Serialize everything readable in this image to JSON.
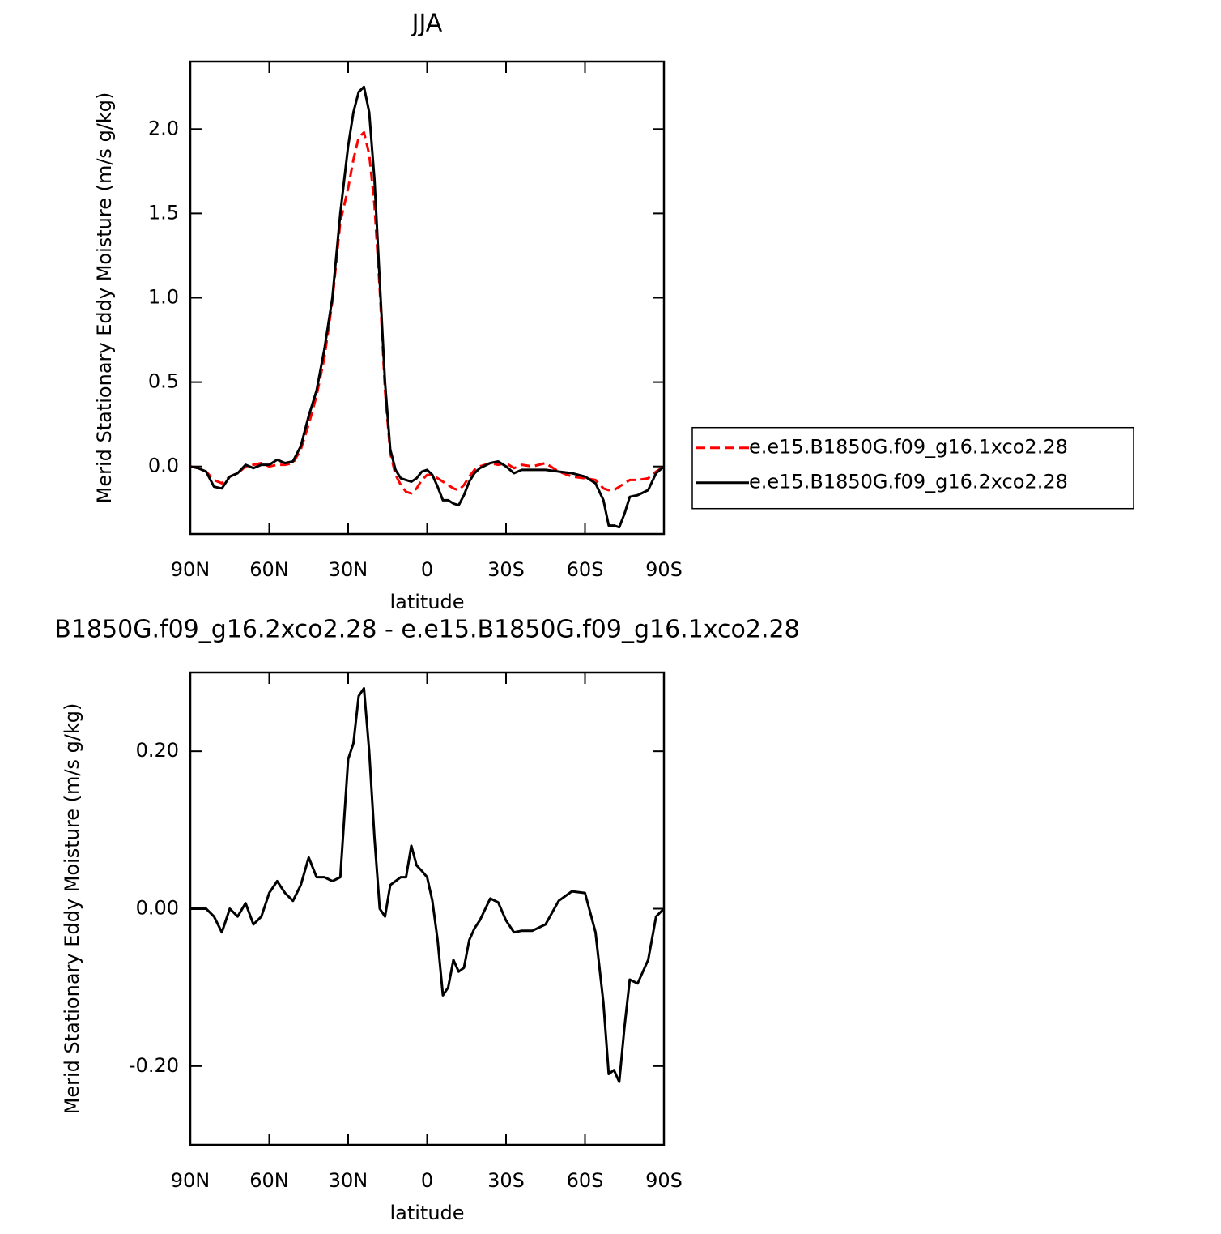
{
  "chart_data": [
    {
      "type": "line",
      "title": "JJA",
      "xlabel": "latitude",
      "ylabel": "Merid Stationary Eddy Moisture (m/s g/kg)",
      "x": [
        90,
        87,
        84,
        81,
        78,
        75,
        72,
        69,
        66,
        63,
        60,
        57,
        54,
        51,
        48,
        45,
        42,
        39,
        36,
        33,
        30,
        28,
        26,
        24,
        22,
        20,
        18,
        16,
        14,
        12,
        10,
        8,
        6,
        4,
        2,
        0,
        -2,
        -4,
        -6,
        -8,
        -10,
        -12,
        -14,
        -16,
        -18,
        -20,
        -24,
        -27,
        -30,
        -33,
        -36,
        -40,
        -45,
        -50,
        -55,
        -60,
        -64,
        -67,
        -69,
        -71,
        -73,
        -75,
        -77,
        -80,
        -84,
        -87,
        -90
      ],
      "series": [
        {
          "name": "e.e15.B1850G.f09_g16.1xco2.28",
          "color": "#ff0000",
          "linestyle": "dashed",
          "values": [
            0,
            -0.01,
            -0.03,
            -0.08,
            -0.1,
            -0.06,
            -0.04,
            0.0,
            0.01,
            0.02,
            0.0,
            0.01,
            0.01,
            0.02,
            0.1,
            0.25,
            0.42,
            0.65,
            0.98,
            1.45,
            1.65,
            1.82,
            1.95,
            1.98,
            1.85,
            1.55,
            1.05,
            0.45,
            0.08,
            -0.05,
            -0.11,
            -0.15,
            -0.16,
            -0.13,
            -0.08,
            -0.05,
            -0.05,
            -0.07,
            -0.09,
            -0.11,
            -0.13,
            -0.14,
            -0.11,
            -0.06,
            -0.02,
            0.0,
            0.02,
            0.01,
            0.02,
            -0.01,
            0.01,
            0.0,
            0.02,
            -0.03,
            -0.06,
            -0.07,
            -0.08,
            -0.13,
            -0.14,
            -0.14,
            -0.12,
            -0.1,
            -0.08,
            -0.08,
            -0.07,
            -0.03,
            0.0
          ]
        },
        {
          "name": "e.e15.B1850G.f09_g16.2xco2.28",
          "color": "#000000",
          "linestyle": "solid",
          "values": [
            0,
            -0.01,
            -0.03,
            -0.12,
            -0.13,
            -0.06,
            -0.04,
            0.01,
            -0.01,
            0.01,
            0.01,
            0.04,
            0.02,
            0.03,
            0.12,
            0.3,
            0.45,
            0.7,
            1.0,
            1.5,
            1.9,
            2.1,
            2.22,
            2.25,
            2.1,
            1.7,
            1.1,
            0.5,
            0.1,
            -0.02,
            -0.07,
            -0.08,
            -0.09,
            -0.07,
            -0.03,
            -0.02,
            -0.05,
            -0.12,
            -0.2,
            -0.2,
            -0.22,
            -0.23,
            -0.17,
            -0.09,
            -0.04,
            -0.01,
            0.02,
            0.03,
            0.0,
            -0.04,
            -0.02,
            -0.02,
            -0.02,
            -0.03,
            -0.04,
            -0.06,
            -0.1,
            -0.2,
            -0.35,
            -0.35,
            -0.36,
            -0.28,
            -0.18,
            -0.17,
            -0.14,
            -0.04,
            0.0
          ]
        }
      ],
      "xlim": [
        90,
        -90
      ],
      "xticks": [
        {
          "value": 90,
          "label": "90N"
        },
        {
          "value": 60,
          "label": "60N"
        },
        {
          "value": 30,
          "label": "30N"
        },
        0,
        {
          "value": -30,
          "label": "30S"
        },
        {
          "value": -60,
          "label": "60S"
        },
        {
          "value": -90,
          "label": "90S"
        }
      ],
      "ylim": [
        -0.4,
        2.4
      ],
      "yticks": [
        {
          "value": 0,
          "label": "0.0"
        },
        0.5,
        {
          "value": 1,
          "label": "1.0"
        },
        1.5,
        {
          "value": 2,
          "label": "2.0"
        }
      ],
      "legend": "right"
    },
    {
      "type": "line",
      "title": "B1850G.f09_g16.2xco2.28 - e.e15.B1850G.f09_g16.1xco2.28",
      "xlabel": "latitude",
      "ylabel": "Merid Stationary Eddy Moisture (m/s g/kg)",
      "x": [
        90,
        87,
        84,
        81,
        78,
        75,
        72,
        69,
        66,
        63,
        60,
        57,
        54,
        51,
        48,
        45,
        42,
        39,
        36,
        33,
        30,
        28,
        26,
        24,
        22,
        20,
        18,
        16,
        14,
        12,
        10,
        8,
        6,
        4,
        2,
        0,
        -2,
        -4,
        -6,
        -8,
        -10,
        -12,
        -14,
        -16,
        -18,
        -20,
        -24,
        -27,
        -30,
        -33,
        -36,
        -40,
        -45,
        -50,
        -55,
        -60,
        -64,
        -67,
        -69,
        -71,
        -73,
        -75,
        -77,
        -80,
        -84,
        -87,
        -90
      ],
      "series": [
        {
          "color": "#000000",
          "linestyle": "solid",
          "values": [
            0,
            0,
            0.0,
            -0.01,
            -0.03,
            0.0,
            -0.01,
            0.007,
            -0.02,
            -0.01,
            0.02,
            0.035,
            0.02,
            0.01,
            0.03,
            0.065,
            0.04,
            0.04,
            0.035,
            0.04,
            0.19,
            0.21,
            0.27,
            0.28,
            0.2,
            0.09,
            0.0,
            -0.01,
            0.03,
            0.035,
            0.04,
            0.04,
            0.08,
            0.055,
            0.048,
            0.04,
            0.01,
            -0.04,
            -0.11,
            -0.1,
            -0.065,
            -0.08,
            -0.075,
            -0.04,
            -0.025,
            -0.015,
            0.013,
            0.008,
            -0.015,
            -0.03,
            -0.028,
            -0.028,
            -0.02,
            0.01,
            0.022,
            0.02,
            -0.03,
            -0.12,
            -0.21,
            -0.205,
            -0.22,
            -0.15,
            -0.09,
            -0.095,
            -0.065,
            -0.01,
            0.0
          ]
        }
      ],
      "xlim": [
        90,
        -90
      ],
      "xticks": [
        {
          "value": 90,
          "label": "90N"
        },
        {
          "value": 60,
          "label": "60N"
        },
        {
          "value": 30,
          "label": "30N"
        },
        0,
        {
          "value": -30,
          "label": "30S"
        },
        {
          "value": -60,
          "label": "60S"
        },
        {
          "value": -90,
          "label": "90S"
        }
      ],
      "ylim": [
        -0.3,
        0.3
      ],
      "yticks": [
        {
          "value": -0.2,
          "label": "-0.20"
        },
        {
          "value": 0,
          "label": "0.00"
        },
        {
          "value": 0.2,
          "label": "0.20"
        }
      ]
    }
  ]
}
